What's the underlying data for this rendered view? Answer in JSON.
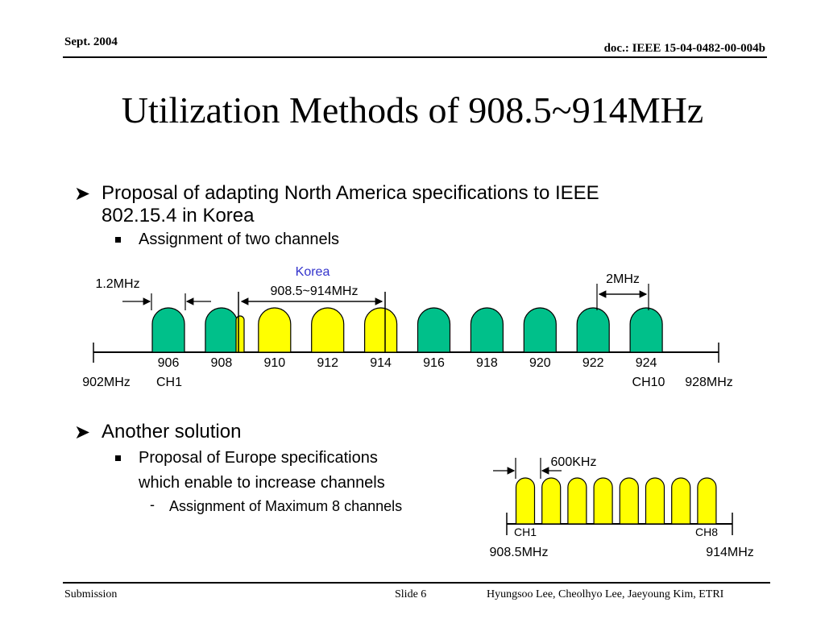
{
  "header": {
    "date": "Sept. 2004",
    "doc": "doc.: IEEE 15-04-0482-00-004b"
  },
  "title": "Utilization Methods of 908.5~914MHz",
  "bullets": {
    "b1_line1": "Proposal of adapting North America specifications to IEEE",
    "b1_line2": "802.15.4 in Korea",
    "b1_sub": "Assignment of two channels",
    "b2": "Another solution",
    "b2_sub_line1": "Proposal of Europe specifications",
    "b2_sub_line2": "which enable to increase channels",
    "b2_subsub": "Assignment of Maximum 8 channels"
  },
  "diagram_na": {
    "korea_label": "Korea",
    "korea_range": "908.5~914MHz",
    "bandwidth_label": "1.2MHz",
    "spacing_label": "2MHz",
    "freqs": [
      "906",
      "908",
      "910",
      "912",
      "914",
      "916",
      "918",
      "920",
      "922",
      "924"
    ],
    "left_edge": "902MHz",
    "right_edge": "928MHz",
    "ch_first": "CH1",
    "ch_last": "CH10",
    "colors": {
      "channel": "#00c08a",
      "korea": "#ffff00",
      "korea_label": "#3333cc"
    }
  },
  "diagram_eu": {
    "spacing_label": "600KHz",
    "ch_first": "CH1",
    "ch_last": "CH8",
    "left_edge": "908.5MHz",
    "right_edge": "914MHz",
    "colors": {
      "channel": "#ffff00"
    }
  },
  "footer": {
    "left": "Submission",
    "center": "Slide 6",
    "right": "Hyungsoo Lee, Cheolhyo Lee, Jaeyoung Kim, ETRI"
  }
}
